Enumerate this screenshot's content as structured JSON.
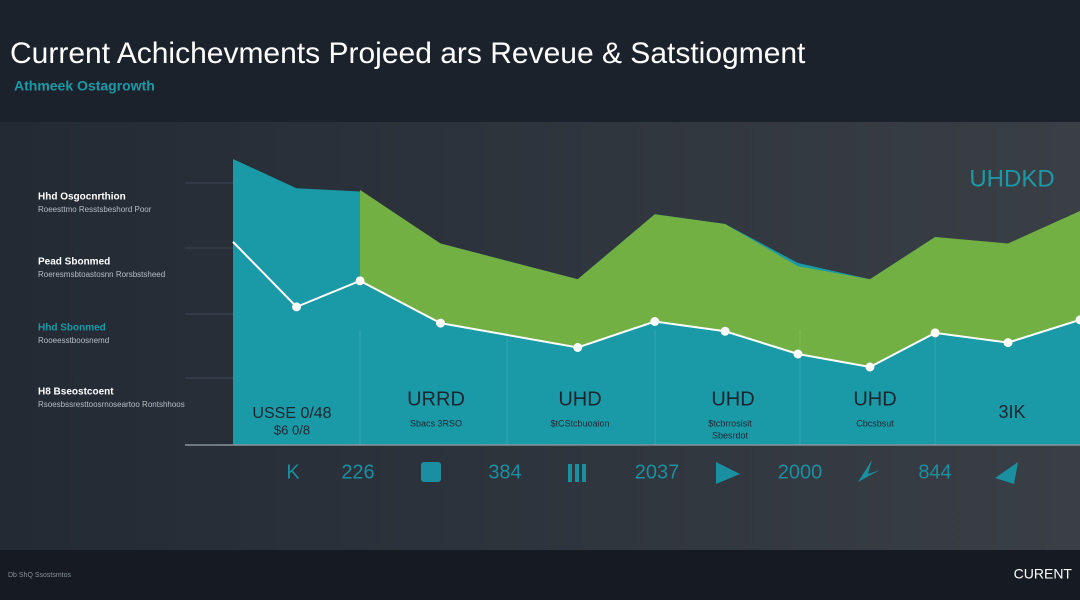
{
  "chart_data": {
    "type": "area",
    "title": "Current Achichevments Projeed ars Reveue & Satstiogment",
    "subtitle": "Athmeek Ostagrowth",
    "x": [
      0,
      7.5,
      15,
      24.5,
      40.7,
      49.8,
      58.1,
      66.7,
      75.2,
      82.9,
      91.5,
      100
    ],
    "xlim": [
      0,
      100
    ],
    "ylim": [
      0,
      100
    ],
    "series": [
      {
        "color": "#1a9aa6",
        "values": [
          88,
          79,
          78,
          62,
          51,
          71,
          68,
          56,
          51,
          64,
          61,
          72
        ]
      },
      {
        "color": "#72b043",
        "values": [
          null,
          null,
          78.5,
          62,
          51,
          71,
          68,
          55,
          51,
          64,
          62,
          72
        ]
      },
      {
        "color": "#ffffff",
        "values": [
          62.5,
          42.5,
          50.5,
          37.5,
          30,
          38,
          35,
          28,
          24,
          34.5,
          31.5,
          38.5
        ]
      }
    ],
    "side_labels": [
      {
        "title": "Hhd Osgocnrthion",
        "text": "Roeesttmo Resstsbeshord Poor"
      },
      {
        "title": "Pead Sbonmed",
        "text": "Roeresmsbtoastosnn Rorsbstsheed"
      },
      {
        "title": "Hhd Sbonmed",
        "text": "Rooeesstboosnemd"
      },
      {
        "title": "H8 Bseostcoent",
        "text": "Rsoesbssresttoosrnoseartoo Rontshhoos"
      }
    ],
    "annotations": [
      "UHDKD",
      "URRD",
      "UHD",
      "UHD",
      "UHD",
      "3IK",
      "USSE 0/48",
      "$6 0/8"
    ],
    "sub_annotations": [
      "Sbacs 3RSO",
      "$tCStcbuoaion",
      "$tcbrrosisit",
      "Sbesrdot",
      "Cbcsbsut"
    ],
    "bottom_labels": [
      "K",
      "226",
      "384",
      "2037",
      "2000",
      "844"
    ],
    "footer": "CURENT",
    "footnote": "Db ShQ Ssostsmtos"
  }
}
